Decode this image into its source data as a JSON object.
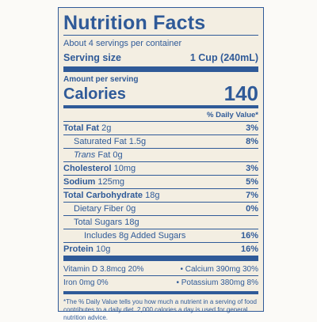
{
  "title": "Nutrition Facts",
  "servings": "About 4 servings per container",
  "serving_size": {
    "label": "Serving size",
    "value": "1 Cup (240mL)"
  },
  "amount_per_serving": "Amount per serving",
  "calories": {
    "label": "Calories",
    "value": "140"
  },
  "dv_header": "% Daily Value*",
  "rows": [
    {
      "name": "Total Fat",
      "amount": "2g",
      "dv": "3%"
    },
    {
      "name": "Saturated Fat",
      "amount": "1.5g",
      "dv": "8%"
    },
    {
      "name_italic": "Trans",
      "name": "Fat",
      "amount": "0g"
    },
    {
      "name": "Cholesterol",
      "amount": "10mg",
      "dv": "3%"
    },
    {
      "name": "Sodium",
      "amount": "125mg",
      "dv": "5%"
    },
    {
      "name": "Total Carbohydrate",
      "amount": "18g",
      "dv": "7%"
    },
    {
      "name": "Dietary Fiber",
      "amount": "0g",
      "dv": "0%"
    },
    {
      "name": "Total Sugars",
      "amount": "18g"
    },
    {
      "name": "Includes 8g Added Sugars",
      "dv": "16%"
    },
    {
      "name": "Protein",
      "amount": "10g",
      "dv": "16%"
    }
  ],
  "vitamins": [
    [
      "Vitamin D 3.8mcg 20%",
      "• Calcium 390mg 30%"
    ],
    [
      "Iron 0mg 0%",
      "• Potassium 380mg 8%"
    ]
  ],
  "footnote": "*The % Daily Value tells you how much a nutrient in a serving of food contributes to a daily diet. 2,000 calories a day is used for general nutrition advice."
}
